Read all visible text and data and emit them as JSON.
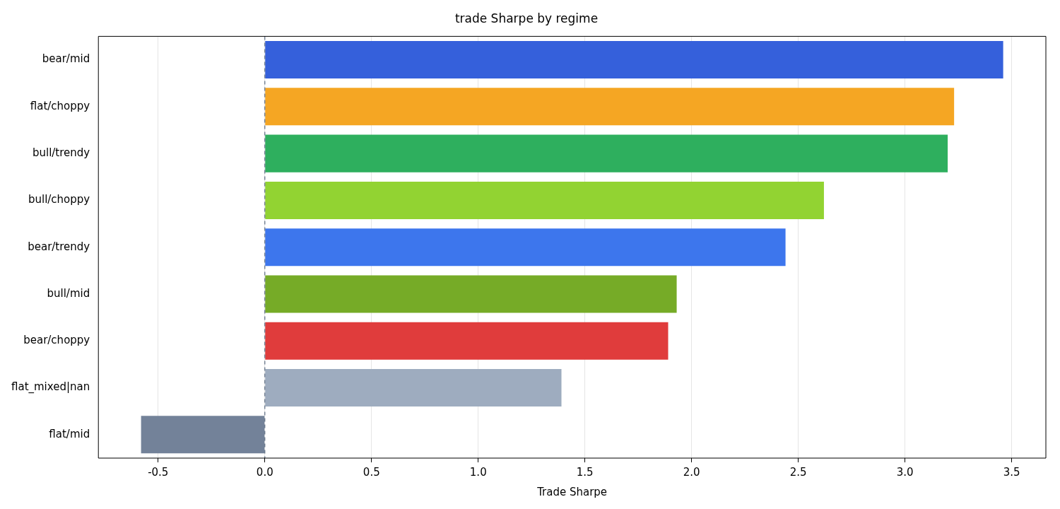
{
  "chart_data": {
    "type": "bar",
    "orientation": "horizontal",
    "title": "trade Sharpe by regime",
    "xlabel": "Trade Sharpe",
    "categories": [
      "bear/mid",
      "flat/choppy",
      "bull/trendy",
      "bull/choppy",
      "bear/trendy",
      "bull/mid",
      "bear/choppy",
      "flat_mixed|nan",
      "flat/mid"
    ],
    "values": [
      3.46,
      3.23,
      3.2,
      2.62,
      2.44,
      1.93,
      1.89,
      1.39,
      -0.58
    ],
    "colors": [
      "#3560db",
      "#f5a623",
      "#2eaf5e",
      "#92d332",
      "#3d76ed",
      "#76ab27",
      "#e03c3c",
      "#9eacbf",
      "#738299"
    ],
    "xlim": [
      -0.78,
      3.66
    ],
    "xticks": [
      {
        "value": -0.5,
        "label": "-0.5"
      },
      {
        "value": 0,
        "label": "0.0"
      },
      {
        "value": 0.5,
        "label": "0.5"
      },
      {
        "value": 1,
        "label": "1.0"
      },
      {
        "value": 1.5,
        "label": "1.5"
      },
      {
        "value": 2,
        "label": "2.0"
      },
      {
        "value": 2.5,
        "label": "2.5"
      },
      {
        "value": 3,
        "label": "3.0"
      },
      {
        "value": 3.5,
        "label": "3.5"
      }
    ],
    "grid": "x",
    "legend": false,
    "ref_lines": [
      {
        "axis": "x",
        "value": 0,
        "color": "#5a6a80",
        "line_style": "dashed"
      }
    ]
  }
}
